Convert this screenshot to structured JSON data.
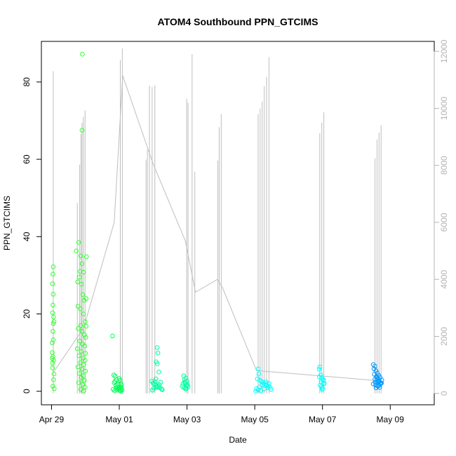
{
  "chart_data": {
    "type": "scatter",
    "title": "ATOM4 Southbound PPN_GTCIMS",
    "xlabel": "Date",
    "ylabel": "PPN_GTCIMS",
    "x_unit": "days (0 = Apr 29)",
    "xlim": [
      -0.3,
      11.3
    ],
    "ylim": [
      -3.5,
      90.5
    ],
    "x_ticks": [
      {
        "value": 0,
        "label": "Apr 29"
      },
      {
        "value": 2,
        "label": "May 01"
      },
      {
        "value": 4,
        "label": "May 03"
      },
      {
        "value": 6,
        "label": "May 05"
      },
      {
        "value": 8,
        "label": "May 07"
      },
      {
        "value": 10,
        "label": "May 09"
      }
    ],
    "y_ticks": [
      0,
      20,
      40,
      60,
      80
    ],
    "y2_ticks": [
      0,
      2000,
      4000,
      6000,
      8000,
      10000,
      12000
    ],
    "y2lim": [
      -400,
      12350
    ],
    "grid": false,
    "secondary_series": {
      "name": "",
      "color": "#bebebe",
      "spikes": [
        {
          "x": 0.05,
          "top": 11300
        },
        {
          "x": 0.76,
          "top": 6680
        },
        {
          "x": 0.83,
          "top": 8020
        },
        {
          "x": 0.87,
          "top": 9100
        },
        {
          "x": 0.9,
          "top": 9500
        },
        {
          "x": 0.94,
          "top": 9700
        },
        {
          "x": 0.99,
          "top": 9930
        },
        {
          "x": 2.03,
          "top": 11700
        },
        {
          "x": 2.09,
          "top": 12100
        },
        {
          "x": 2.79,
          "top": 8200
        },
        {
          "x": 2.83,
          "top": 8550
        },
        {
          "x": 2.89,
          "top": 10800
        },
        {
          "x": 2.97,
          "top": 10750
        },
        {
          "x": 3.05,
          "top": 10800
        },
        {
          "x": 3.99,
          "top": 10340
        },
        {
          "x": 4.03,
          "top": 10200
        },
        {
          "x": 4.15,
          "top": 11900
        },
        {
          "x": 4.23,
          "top": 7780
        },
        {
          "x": 4.91,
          "top": 8170
        },
        {
          "x": 4.95,
          "top": 9340
        },
        {
          "x": 5.01,
          "top": 9800
        },
        {
          "x": 6.1,
          "top": 9800
        },
        {
          "x": 6.16,
          "top": 10000
        },
        {
          "x": 6.22,
          "top": 10240
        },
        {
          "x": 6.28,
          "top": 10780
        },
        {
          "x": 6.35,
          "top": 11100
        },
        {
          "x": 6.42,
          "top": 11800
        },
        {
          "x": 7.92,
          "top": 9130
        },
        {
          "x": 7.98,
          "top": 9500
        },
        {
          "x": 8.04,
          "top": 9860
        },
        {
          "x": 9.55,
          "top": 8250
        },
        {
          "x": 9.61,
          "top": 8900
        },
        {
          "x": 9.67,
          "top": 9150
        },
        {
          "x": 9.73,
          "top": 9400
        }
      ],
      "connector": [
        [
          0.05,
          730
        ],
        [
          0.95,
          2300
        ],
        [
          1.85,
          6000
        ],
        [
          2.1,
          11150
        ],
        [
          3.0,
          8050
        ],
        [
          3.95,
          5350
        ],
        [
          4.25,
          3550
        ],
        [
          4.9,
          4000
        ],
        [
          5.05,
          3700
        ],
        [
          6.05,
          800
        ],
        [
          9.6,
          450
        ]
      ]
    },
    "series": [
      {
        "name": "",
        "color": "#33ff33",
        "points": [
          [
            0.02,
            8.5
          ],
          [
            0.03,
            7.3
          ],
          [
            0.04,
            9.0
          ],
          [
            0.02,
            12.5
          ],
          [
            0.05,
            13.3
          ],
          [
            0.04,
            15.5
          ],
          [
            0.05,
            17.5
          ],
          [
            0.06,
            19.2
          ],
          [
            0.03,
            20.3
          ],
          [
            0.04,
            22.3
          ],
          [
            0.05,
            25.1
          ],
          [
            0.03,
            27.8
          ],
          [
            0.04,
            30.3
          ],
          [
            0.05,
            32.2
          ],
          [
            0.06,
            3.0
          ],
          [
            0.07,
            4.5
          ],
          [
            0.04,
            1.3
          ],
          [
            0.08,
            0.7
          ],
          [
            0.03,
            6.0
          ],
          [
            0.06,
            8.0
          ],
          [
            0.07,
            18.0
          ],
          [
            0.02,
            10.0
          ],
          [
            0.73,
            36.3
          ],
          [
            0.8,
            38.5
          ],
          [
            0.86,
            35.0
          ],
          [
            0.9,
            33.0
          ],
          [
            0.84,
            31.0
          ],
          [
            0.82,
            29.5
          ],
          [
            0.95,
            30.8
          ],
          [
            0.88,
            27.7
          ],
          [
            0.92,
            25.0
          ],
          [
            0.96,
            23.5
          ],
          [
            0.78,
            22.0
          ],
          [
            0.85,
            21.3
          ],
          [
            0.94,
            20.0
          ],
          [
            0.99,
            18.0
          ],
          [
            0.86,
            17.0
          ],
          [
            1.02,
            16.8
          ],
          [
            0.79,
            16.2
          ],
          [
            0.9,
            15.5
          ],
          [
            0.97,
            14.6
          ],
          [
            1.01,
            13.9
          ],
          [
            0.83,
            13.0
          ],
          [
            0.91,
            12.2
          ],
          [
            0.98,
            11.7
          ],
          [
            0.76,
            11.0
          ],
          [
            0.88,
            10.3
          ],
          [
            1.0,
            9.8
          ],
          [
            0.81,
            9.2
          ],
          [
            0.93,
            8.6
          ],
          [
            0.99,
            8.0
          ],
          [
            0.85,
            7.4
          ],
          [
            0.95,
            6.9
          ],
          [
            0.78,
            6.3
          ],
          [
            0.9,
            5.7
          ],
          [
            1.0,
            5.2
          ],
          [
            0.82,
            4.6
          ],
          [
            0.94,
            4.0
          ],
          [
            0.87,
            3.5
          ],
          [
            0.97,
            2.8
          ],
          [
            0.8,
            2.2
          ],
          [
            0.92,
            1.7
          ],
          [
            0.99,
            1.1
          ],
          [
            0.86,
            0.5
          ],
          [
            0.95,
            0.0
          ],
          [
            0.9,
            67.5
          ],
          [
            0.91,
            87.2
          ],
          [
            1.03,
            34.8
          ],
          [
            0.77,
            28.3
          ],
          [
            1.02,
            24.0
          ]
        ]
      },
      {
        "name": "",
        "color": "#00ff55",
        "points": [
          [
            2.0,
            3.3
          ],
          [
            2.02,
            2.8
          ],
          [
            2.04,
            2.0
          ],
          [
            2.03,
            1.2
          ],
          [
            2.05,
            0.6
          ],
          [
            2.01,
            0.2
          ],
          [
            2.06,
            0.9
          ],
          [
            2.07,
            1.6
          ],
          [
            2.05,
            0.0
          ],
          [
            2.08,
            0.4
          ],
          [
            1.8,
            14.3
          ],
          [
            1.84,
            4.2
          ],
          [
            1.88,
            3.9
          ],
          [
            1.92,
            3.0
          ],
          [
            1.85,
            2.2
          ],
          [
            1.9,
            1.5
          ],
          [
            1.95,
            1.0
          ],
          [
            2.0,
            0.8
          ],
          [
            1.82,
            0.5
          ],
          [
            1.86,
            0.1
          ],
          [
            1.93,
            0.3
          ],
          [
            1.98,
            0.6
          ],
          [
            1.87,
            2.6
          ],
          [
            1.96,
            1.8
          ],
          [
            2.02,
            0.2
          ],
          [
            1.91,
            0.9
          ]
        ]
      },
      {
        "name": "",
        "color": "#00ffa0",
        "points": [
          [
            3.12,
            11.3
          ],
          [
            3.14,
            9.9
          ],
          [
            3.09,
            7.6
          ],
          [
            3.12,
            7.1
          ],
          [
            3.17,
            5.0
          ],
          [
            3.08,
            3.2
          ],
          [
            2.96,
            2.6
          ],
          [
            3.0,
            2.1
          ],
          [
            3.05,
            1.8
          ],
          [
            3.1,
            1.5
          ],
          [
            3.15,
            1.2
          ],
          [
            3.2,
            0.9
          ],
          [
            3.25,
            0.6
          ],
          [
            2.98,
            0.3
          ],
          [
            3.02,
            0.8
          ],
          [
            3.08,
            1.1
          ],
          [
            3.18,
            1.7
          ],
          [
            3.22,
            2.3
          ],
          [
            3.27,
            0.4
          ],
          [
            3.06,
            2.5
          ],
          [
            3.11,
            1.0
          ],
          [
            3.9,
            4.0
          ],
          [
            3.97,
            3.4
          ],
          [
            3.92,
            3.0
          ],
          [
            4.0,
            2.6
          ],
          [
            3.95,
            2.2
          ],
          [
            3.88,
            1.9
          ],
          [
            3.99,
            1.5
          ],
          [
            4.03,
            1.2
          ],
          [
            3.91,
            0.9
          ],
          [
            3.96,
            0.6
          ],
          [
            4.01,
            1.7
          ],
          [
            3.93,
            2.4
          ],
          [
            3.98,
            0.8
          ],
          [
            3.86,
            1.3
          ]
        ]
      },
      {
        "name": "",
        "color": "#00ffff",
        "points": [
          [
            6.1,
            5.8
          ],
          [
            6.12,
            4.5
          ],
          [
            6.08,
            3.2
          ],
          [
            6.15,
            2.8
          ],
          [
            6.2,
            2.5
          ],
          [
            6.25,
            2.2
          ],
          [
            6.3,
            1.9
          ],
          [
            6.35,
            1.6
          ],
          [
            6.4,
            1.3
          ],
          [
            6.45,
            1.0
          ],
          [
            6.05,
            0.7
          ],
          [
            6.1,
            0.4
          ],
          [
            6.18,
            0.1
          ],
          [
            6.28,
            0.6
          ],
          [
            6.38,
            0.9
          ],
          [
            6.22,
            1.7
          ],
          [
            6.33,
            2.4
          ],
          [
            6.42,
            2.0
          ],
          [
            6.14,
            1.1
          ],
          [
            6.48,
            0.5
          ],
          [
            6.03,
            0.0
          ],
          [
            7.92,
            6.3
          ],
          [
            7.9,
            5.7
          ],
          [
            7.95,
            4.2
          ],
          [
            7.98,
            3.4
          ],
          [
            8.02,
            2.8
          ],
          [
            8.05,
            2.1
          ],
          [
            7.93,
            1.6
          ],
          [
            7.97,
            1.2
          ],
          [
            8.0,
            0.8
          ],
          [
            8.04,
            1.9
          ],
          [
            7.96,
            2.5
          ],
          [
            8.03,
            3.0
          ],
          [
            7.99,
            0.5
          ],
          [
            7.91,
            3.7
          ]
        ]
      },
      {
        "name": "",
        "color": "#0099ff",
        "points": [
          [
            9.5,
            6.9
          ],
          [
            9.55,
            6.5
          ],
          [
            9.52,
            5.8
          ],
          [
            9.58,
            5.3
          ],
          [
            9.62,
            4.7
          ],
          [
            9.66,
            4.1
          ],
          [
            9.7,
            3.6
          ],
          [
            9.55,
            3.1
          ],
          [
            9.6,
            2.8
          ],
          [
            9.65,
            2.5
          ],
          [
            9.72,
            2.2
          ],
          [
            9.5,
            1.9
          ],
          [
            9.57,
            1.6
          ],
          [
            9.63,
            1.3
          ],
          [
            9.69,
            1.0
          ],
          [
            9.75,
            2.9
          ],
          [
            9.53,
            4.4
          ],
          [
            9.59,
            3.8
          ],
          [
            9.64,
            3.3
          ],
          [
            9.68,
            2.6
          ],
          [
            9.71,
            1.9
          ],
          [
            9.56,
            2.3
          ],
          [
            9.61,
            3.5
          ],
          [
            9.67,
            1.5
          ],
          [
            9.74,
            2.1
          ],
          [
            9.58,
            0.9
          ]
        ]
      }
    ]
  }
}
